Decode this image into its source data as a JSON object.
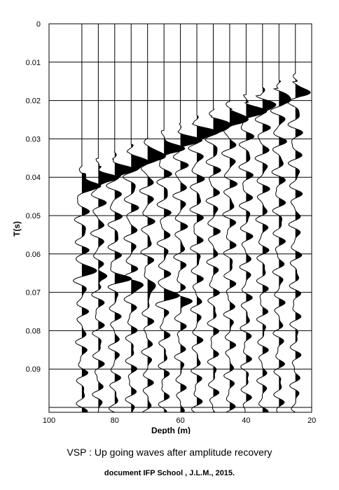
{
  "chart_data": {
    "type": "line",
    "xlabel": "Depth (m)",
    "ylabel": "T(s)",
    "xlim": [
      100,
      15
    ],
    "ylim": [
      0,
      0.1
    ],
    "x_ticks": [
      "100",
      "80",
      "60",
      "40",
      "20"
    ],
    "x_tick_values": [
      100,
      80,
      60,
      40,
      20
    ],
    "y_ticks": [
      "0",
      "0.01",
      "0.02",
      "0.03",
      "0.04",
      "0.05",
      "0.06",
      "0.07",
      "0.08",
      "0.09"
    ],
    "y_tick_values": [
      0,
      0.01,
      0.02,
      0.03,
      0.04,
      0.05,
      0.06,
      0.07,
      0.08,
      0.09
    ],
    "y_grid_extra": [
      0.1
    ],
    "trace_depths": [
      90,
      85,
      80,
      75,
      70,
      65,
      60,
      55,
      50,
      45,
      40,
      35,
      30,
      25
    ],
    "first_arrival": [
      {
        "depth": 90,
        "time": 0.039
      },
      {
        "depth": 25,
        "time": 0.015
      }
    ],
    "up_going_events": [
      {
        "start_depth": 90,
        "start_time": 0.042,
        "end_depth": 40,
        "end_time": 0.022
      },
      {
        "start_depth": 90,
        "start_time": 0.064,
        "end_depth": 60,
        "end_time": 0.072
      }
    ],
    "colors": {
      "ink": "#000000",
      "background": "#ffffff"
    }
  },
  "caption": {
    "title": "VSP : Up going waves after amplitude recovery",
    "credit": "document IFP School , J.L.M., 2015."
  }
}
